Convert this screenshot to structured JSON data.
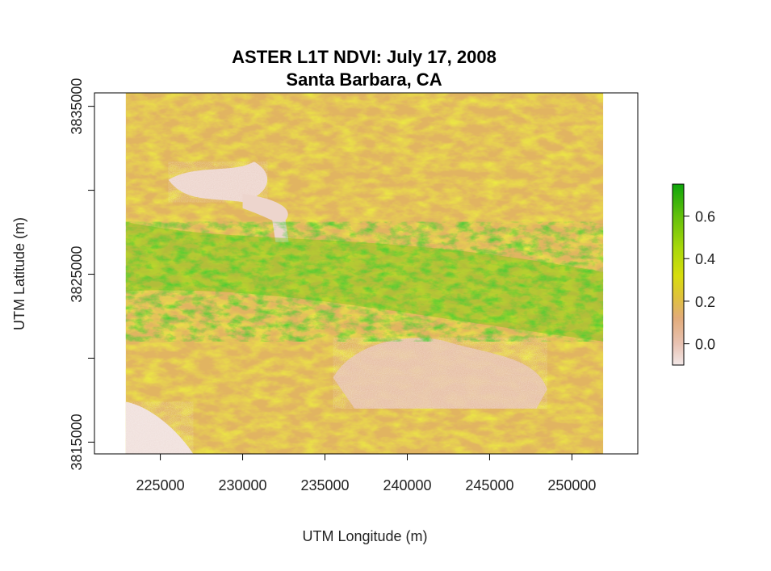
{
  "chart_data": {
    "type": "heatmap",
    "title": [
      "ASTER L1T NDVI: July 17, 2008",
      "Santa Barbara, CA"
    ],
    "xlabel": "UTM Longitude (m)",
    "ylabel": "UTM Latitude (m)",
    "xlim": [
      221000,
      254000
    ],
    "ylim": [
      3814300,
      3835800
    ],
    "raster_extent": {
      "x": [
        222900,
        251900
      ],
      "y": [
        3814300,
        3835800
      ]
    },
    "x_ticks": [
      225000,
      230000,
      235000,
      240000,
      245000,
      250000
    ],
    "x_tick_labels": [
      "225000",
      "230000",
      "235000",
      "240000",
      "245000",
      "250000"
    ],
    "y_ticks": [
      3815000,
      3820000,
      3825000,
      3830000,
      3835000
    ],
    "y_tick_labels": [
      "3815000",
      "",
      "3825000",
      "",
      "3835000"
    ],
    "colorbar": {
      "range": [
        -0.1,
        0.75
      ],
      "ticks": [
        0.0,
        0.2,
        0.4,
        0.6
      ],
      "tick_labels": [
        "0.0",
        "0.2",
        "0.4",
        "0.6"
      ],
      "colors": [
        {
          "value": -0.1,
          "color": "#f2e7e7"
        },
        {
          "value": 0.0,
          "color": "#e8c2b2"
        },
        {
          "value": 0.12,
          "color": "#e2ab7a"
        },
        {
          "value": 0.22,
          "color": "#dfc23b"
        },
        {
          "value": 0.32,
          "color": "#d7dd0c"
        },
        {
          "value": 0.45,
          "color": "#a8d80a"
        },
        {
          "value": 0.6,
          "color": "#62c00b"
        },
        {
          "value": 0.75,
          "color": "#0ea50a"
        }
      ]
    },
    "regions": [
      {
        "feature": "lake",
        "ndvi": -0.05,
        "x": [
          225500,
          232000
        ],
        "y": [
          3829300,
          3831700
        ]
      },
      {
        "feature": "lake-arm",
        "ndvi": -0.05,
        "x": [
          230000,
          234000
        ],
        "y": [
          3826900,
          3829800
        ]
      },
      {
        "feature": "valley",
        "ndvi": 0.0,
        "x": [
          235500,
          248500
        ],
        "y": [
          3817000,
          3821600
        ]
      },
      {
        "feature": "mountain-ridge",
        "ndvi": 0.55,
        "x": [
          222900,
          251900
        ],
        "y": [
          3821000,
          3828500
        ]
      },
      {
        "feature": "ocean",
        "ndvi": -0.08,
        "x": [
          222900,
          227000
        ],
        "y": [
          3814300,
          3817400
        ]
      }
    ]
  }
}
